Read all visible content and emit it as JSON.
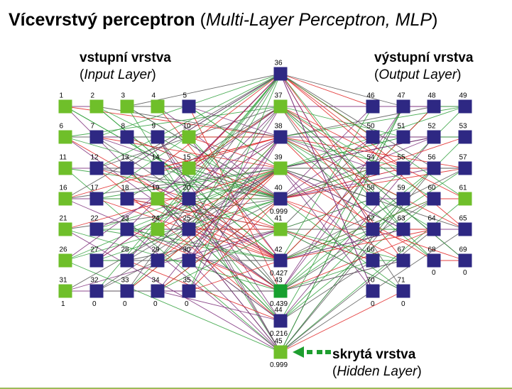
{
  "title": {
    "bold": "Vícevrstvý perceptron",
    "open": " (",
    "italic": "Multi-Layer Perceptron, MLP",
    "close": ")"
  },
  "input_caption": {
    "main": "vstupní vrstva",
    "open": "(",
    "sub": "Input Layer",
    "close": ")"
  },
  "output_caption": {
    "main": "výstupní vrstva",
    "open": "(",
    "sub": "Output Layer",
    "close": ")"
  },
  "hidden_caption": {
    "main": "skrytá vrstva",
    "open": "(",
    "sub": "Hidden Layer",
    "close": ")"
  },
  "colors": {
    "green": "#6fbf2a",
    "green_bright": "#17a02f",
    "navy": "#2e2883",
    "edge_colors": [
      "#2e9f3a",
      "#e02020",
      "#7a2a78",
      "#555555"
    ],
    "arrow": "#1e9e2f",
    "rule": "#9bbb59"
  },
  "network": {
    "input": [
      {
        "id": "1",
        "c": "g"
      },
      {
        "id": "2",
        "c": "g"
      },
      {
        "id": "3",
        "c": "g"
      },
      {
        "id": "4",
        "c": "g"
      },
      {
        "id": "5",
        "c": "n"
      },
      {
        "id": "6",
        "c": "g"
      },
      {
        "id": "7",
        "c": "n"
      },
      {
        "id": "8",
        "c": "n"
      },
      {
        "id": "9",
        "c": "n"
      },
      {
        "id": "10",
        "c": "g"
      },
      {
        "id": "11",
        "c": "g"
      },
      {
        "id": "12",
        "c": "n"
      },
      {
        "id": "13",
        "c": "n"
      },
      {
        "id": "14",
        "c": "n"
      },
      {
        "id": "15",
        "c": "g"
      },
      {
        "id": "16",
        "c": "g"
      },
      {
        "id": "17",
        "c": "n"
      },
      {
        "id": "18",
        "c": "n"
      },
      {
        "id": "19",
        "c": "g"
      },
      {
        "id": "20",
        "c": "n"
      },
      {
        "id": "21",
        "c": "g"
      },
      {
        "id": "22",
        "c": "n"
      },
      {
        "id": "23",
        "c": "n"
      },
      {
        "id": "24",
        "c": "g"
      },
      {
        "id": "25",
        "c": "n"
      },
      {
        "id": "26",
        "c": "g"
      },
      {
        "id": "27",
        "c": "n"
      },
      {
        "id": "28",
        "c": "n"
      },
      {
        "id": "29",
        "c": "n"
      },
      {
        "id": "30",
        "c": "n"
      },
      {
        "id": "31",
        "c": "g"
      },
      {
        "id": "32",
        "c": "n"
      },
      {
        "id": "33",
        "c": "n"
      },
      {
        "id": "34",
        "c": "n"
      },
      {
        "id": "35",
        "c": "n"
      }
    ],
    "hidden": [
      {
        "id": "36",
        "c": "n"
      },
      {
        "id": "37",
        "c": "g"
      },
      {
        "id": "38",
        "c": "n"
      },
      {
        "id": "39",
        "c": "g"
      },
      {
        "id": "40",
        "c": "n"
      },
      {
        "id": "41",
        "c": "g"
      },
      {
        "id": "42",
        "c": "n"
      },
      {
        "id": "43",
        "c": "gb"
      },
      {
        "id": "44",
        "c": "n"
      },
      {
        "id": "45",
        "c": "g"
      }
    ],
    "output": [
      {
        "id": "46",
        "c": "n"
      },
      {
        "id": "47",
        "c": "n"
      },
      {
        "id": "48",
        "c": "n"
      },
      {
        "id": "49",
        "c": "n"
      },
      {
        "id": "50",
        "c": "n"
      },
      {
        "id": "51",
        "c": "n"
      },
      {
        "id": "52",
        "c": "n"
      },
      {
        "id": "53",
        "c": "n"
      },
      {
        "id": "54",
        "c": "n"
      },
      {
        "id": "55",
        "c": "n"
      },
      {
        "id": "56",
        "c": "n"
      },
      {
        "id": "57",
        "c": "n"
      },
      {
        "id": "58",
        "c": "n"
      },
      {
        "id": "59",
        "c": "n"
      },
      {
        "id": "60",
        "c": "n"
      },
      {
        "id": "61",
        "c": "g"
      },
      {
        "id": "62",
        "c": "n"
      },
      {
        "id": "63",
        "c": "n"
      },
      {
        "id": "64",
        "c": "n"
      },
      {
        "id": "65",
        "c": "n"
      },
      {
        "id": "66",
        "c": "n"
      },
      {
        "id": "67",
        "c": "n"
      },
      {
        "id": "68",
        "c": "n"
      },
      {
        "id": "69",
        "c": "n"
      },
      {
        "id": "70",
        "c": "n"
      },
      {
        "id": "71",
        "c": "n"
      }
    ],
    "input_bottom_values": [
      "1",
      "0",
      "0",
      "0",
      "0"
    ],
    "output_bottom_values": [
      "0",
      "0",
      "0",
      "0"
    ],
    "hidden_side_values": {
      "40": "0.999",
      "42": "0.427",
      "43": "0.439",
      "44": "0.216",
      "45": "0.999"
    }
  }
}
